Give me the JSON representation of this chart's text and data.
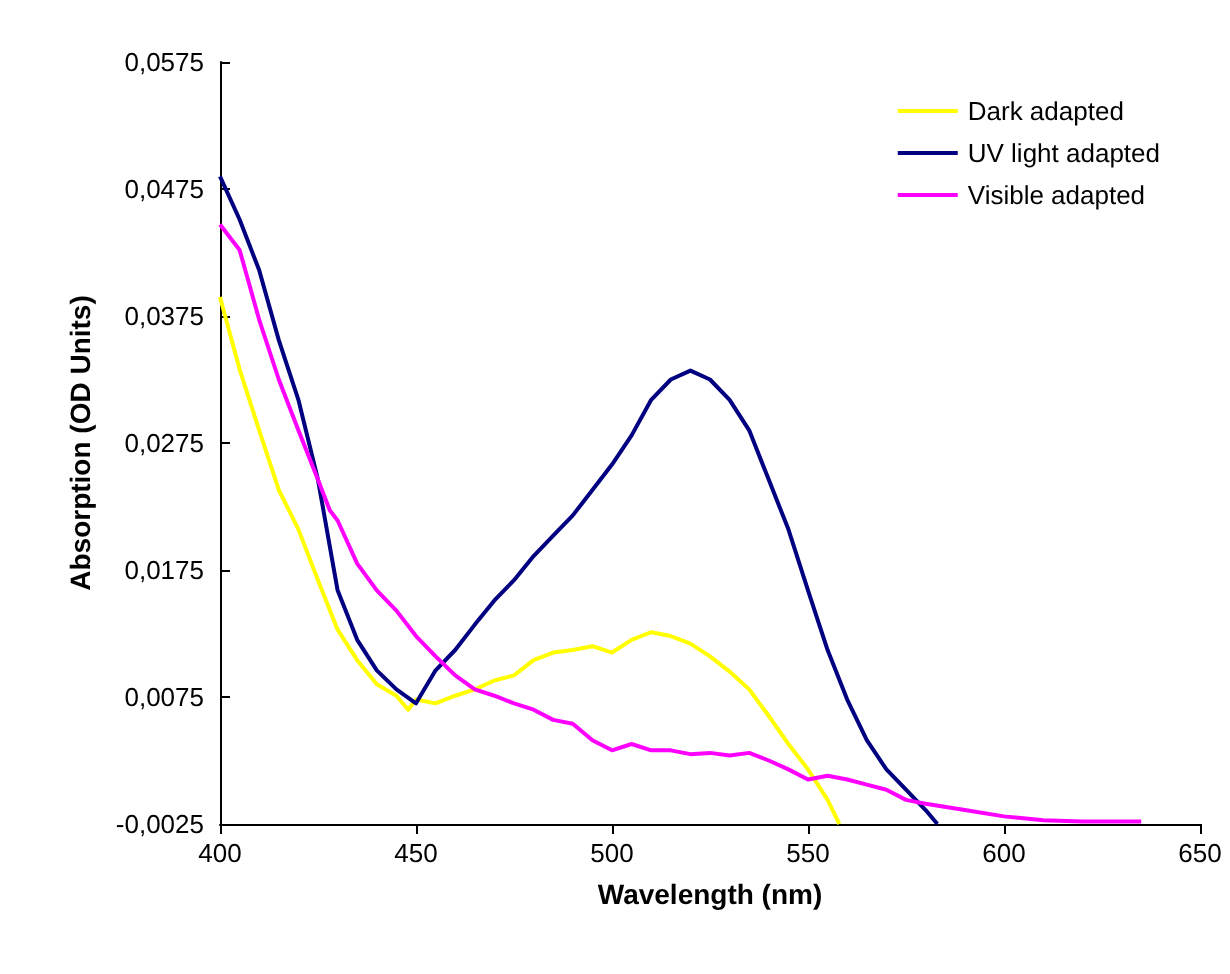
{
  "chart_data": {
    "type": "line",
    "xlabel": "Wavelength (nm)",
    "ylabel": "Absorption (OD Units)",
    "legend": "top right",
    "grid": false,
    "marker": "none",
    "line_style": "solid",
    "xlim": [
      400,
      650
    ],
    "xticks": [
      400,
      450,
      500,
      550,
      600,
      650
    ],
    "ylim": [
      -0.0025,
      0.0575
    ],
    "yticks": [
      {
        "value": -0.0025,
        "label": "-0,0025"
      },
      {
        "value": 0.0075,
        "label": "0,0075"
      },
      {
        "value": 0.0175,
        "label": "0,0175"
      },
      {
        "value": 0.0275,
        "label": "0,0275"
      },
      {
        "value": 0.0375,
        "label": "0,0375"
      },
      {
        "value": 0.0475,
        "label": "0,0475"
      },
      {
        "value": 0.0575,
        "label": "0,0575"
      }
    ],
    "series": [
      {
        "name": "Dark adapted",
        "color": "#ffff00",
        "x": [
          400,
          405,
          410,
          415,
          420,
          425,
          430,
          435,
          440,
          445,
          448,
          450,
          455,
          460,
          465,
          470,
          475,
          480,
          485,
          490,
          495,
          500,
          505,
          510,
          515,
          520,
          525,
          530,
          535,
          540,
          545,
          550,
          555,
          558
        ],
        "values": [
          0.039,
          0.0333,
          0.0285,
          0.0238,
          0.0207,
          0.0167,
          0.0128,
          0.0104,
          0.0085,
          0.0076,
          0.0065,
          0.0073,
          0.007,
          0.0076,
          0.0081,
          0.0088,
          0.0092,
          0.0104,
          0.011,
          0.0112,
          0.0115,
          0.011,
          0.012,
          0.0126,
          0.0123,
          0.0117,
          0.0107,
          0.0095,
          0.0081,
          0.006,
          0.0038,
          0.0018,
          -0.0006,
          -0.0025
        ]
      },
      {
        "name": "UV light adapted",
        "color": "#000080",
        "x": [
          400,
          405,
          410,
          415,
          420,
          425,
          430,
          435,
          440,
          445,
          450,
          455,
          460,
          465,
          470,
          475,
          480,
          485,
          490,
          495,
          500,
          505,
          510,
          515,
          520,
          525,
          530,
          535,
          540,
          545,
          550,
          555,
          560,
          565,
          570,
          575,
          580,
          583
        ],
        "values": [
          0.0485,
          0.0451,
          0.0411,
          0.0356,
          0.0309,
          0.0246,
          0.0159,
          0.012,
          0.0096,
          0.0081,
          0.007,
          0.0096,
          0.0112,
          0.0132,
          0.0151,
          0.0167,
          0.0186,
          0.0202,
          0.0218,
          0.0238,
          0.0258,
          0.0281,
          0.0309,
          0.0325,
          0.0332,
          0.0325,
          0.0309,
          0.0285,
          0.0246,
          0.0207,
          0.0159,
          0.0112,
          0.0073,
          0.0041,
          0.0018,
          0.0002,
          -0.0014,
          -0.0025
        ]
      },
      {
        "name": "Visible adapted",
        "color": "#ff00ff",
        "x": [
          400,
          405,
          410,
          415,
          420,
          425,
          428,
          430,
          435,
          440,
          445,
          450,
          455,
          460,
          465,
          470,
          475,
          480,
          485,
          490,
          495,
          500,
          505,
          510,
          515,
          520,
          525,
          530,
          535,
          540,
          545,
          550,
          555,
          560,
          565,
          570,
          575,
          580,
          590,
          600,
          610,
          620,
          635
        ],
        "values": [
          0.0447,
          0.0427,
          0.0372,
          0.0325,
          0.0285,
          0.0246,
          0.0222,
          0.0214,
          0.018,
          0.0159,
          0.0143,
          0.0123,
          0.0107,
          0.0092,
          0.0081,
          0.0076,
          0.007,
          0.0065,
          0.0057,
          0.0054,
          0.0041,
          0.0033,
          0.0038,
          0.0033,
          0.0033,
          0.003,
          0.0031,
          0.0029,
          0.0031,
          0.0025,
          0.0018,
          0.001,
          0.0013,
          0.001,
          0.0006,
          0.0002,
          -0.0006,
          -0.0009,
          -0.0014,
          -0.0019,
          -0.0022,
          -0.0023,
          -0.0023
        ]
      }
    ]
  }
}
